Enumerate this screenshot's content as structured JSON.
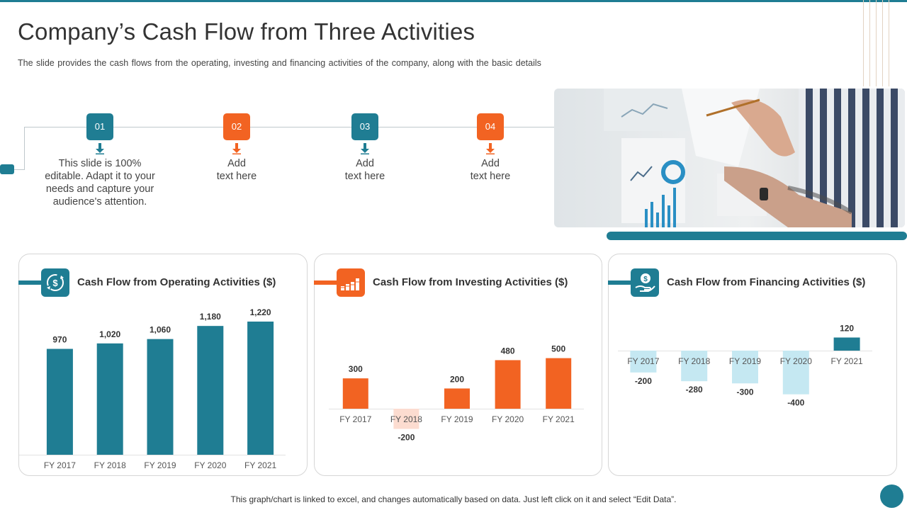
{
  "page": {
    "title": "Company’s Cash Flow from Three Activities",
    "subtitle": "The slide provides  the cash flows from the operating,  investing and financing activities of the company, along with the basic details",
    "footer": "This graph/chart is linked to excel,  and changes automatically based on data. Just left click on it and select “Edit Data”."
  },
  "colors": {
    "teal": "#1f7d93",
    "orange": "#f26322",
    "light_orange": "#fcdcd0",
    "light_blue": "#c5e8f2"
  },
  "timeline": [
    {
      "num": "01",
      "lines": [
        "This slide is 100%",
        "editable. Adapt it to your",
        "needs and capture your",
        "audience's attention."
      ],
      "color": "#1f7d93"
    },
    {
      "num": "02",
      "lines": [
        "Add",
        "text here"
      ],
      "color": "#f26322"
    },
    {
      "num": "03",
      "lines": [
        "Add",
        "text here"
      ],
      "color": "#1f7d93"
    },
    {
      "num": "04",
      "lines": [
        "Add",
        "text here"
      ],
      "color": "#f26322"
    }
  ],
  "icons": {
    "operating": "dollar-cycle-icon",
    "investing": "coin-stack-icon",
    "financing": "dollar-hand-icon"
  },
  "chart_data": [
    {
      "type": "bar",
      "title": "Cash Flow from Operating Activities ($)",
      "categories": [
        "FY 2017",
        "FY 2018",
        "FY 2019",
        "FY 2020",
        "FY 2021"
      ],
      "values": [
        970,
        1020,
        1060,
        1180,
        1220
      ],
      "labels": [
        "970",
        "1,020",
        "1,060",
        "1,180",
        "1,220"
      ],
      "ylim": [
        0,
        1220
      ],
      "color": "#1f7d93",
      "negative_color": "#1f7d93",
      "grid": false
    },
    {
      "type": "bar",
      "title": "Cash Flow from Investing Activities ($)",
      "categories": [
        "FY 2017",
        "FY 2018",
        "FY 2019",
        "FY 2020",
        "FY 2021"
      ],
      "values": [
        300,
        -200,
        200,
        480,
        500
      ],
      "labels": [
        "300",
        "-200",
        "200",
        "480",
        "500"
      ],
      "ylim": [
        -200,
        500
      ],
      "color": "#f26322",
      "negative_color": "#fcdcd0",
      "grid": false
    },
    {
      "type": "bar",
      "title": "Cash Flow from Financing Activities ($)",
      "categories": [
        "FY 2017",
        "FY 2018",
        "FY 2019",
        "FY 2020",
        "FY 2021"
      ],
      "values": [
        -200,
        -280,
        -300,
        -400,
        120
      ],
      "labels": [
        "-200",
        "-280",
        "-300",
        "-400",
        "120"
      ],
      "ylim": [
        -400,
        120
      ],
      "color": "#1f7d93",
      "negative_color": "#c5e8f2",
      "grid": false
    }
  ]
}
